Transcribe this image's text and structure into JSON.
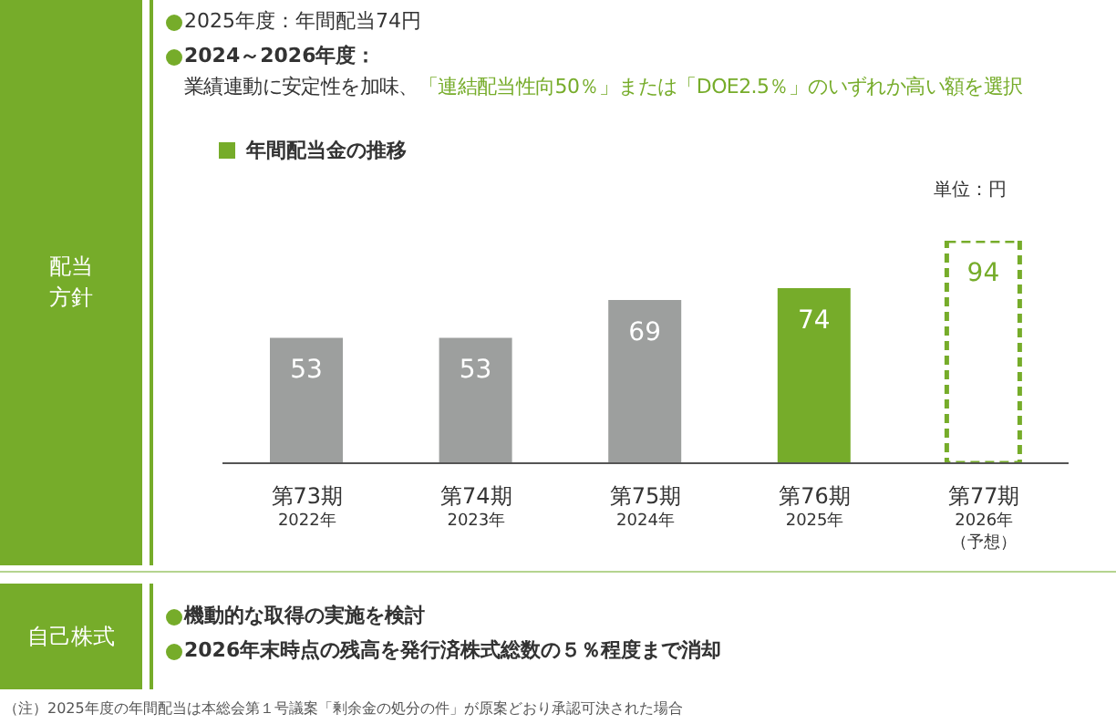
{
  "chart_data": {
    "type": "bar",
    "title": "年間配当金の推移",
    "ylabel": "単位：円",
    "categories": [
      "第73期\n2022年",
      "第74期\n2023年",
      "第75期\n2024年",
      "第76期\n2025年",
      "第77期\n2026年（予想）"
    ],
    "stacked": true,
    "data_labels": true,
    "series": [
      {
        "colors": [
          "#9d9f9e",
          "#9d9f9e",
          "#9d9f9e",
          "#76ac2a",
          null
        ],
        "values": [
          53,
          53,
          69,
          74,
          null
        ]
      },
      {
        "color": "#76ac2a",
        "line_style": "dashed",
        "values": [
          null,
          null,
          null,
          null,
          94
        ]
      }
    ],
    "annotations": [
      "配当方針",
      "2025年度：年間配当74円",
      "2024～2026年度：",
      "業績連動に安定性を加味、",
      "「連結配当性向50％」または「DOE2.5％」のいずれか高い額を選択",
      "自己株式",
      "機動的な取得の実施を検討",
      "2026年末時点の残高を発行済株式総数の５％程度まで消却",
      "（注）2025年度の年間配当は本総会第１号議案「剰余金の処分の件」が原案どおり承認可決された場合"
    ]
  }
}
